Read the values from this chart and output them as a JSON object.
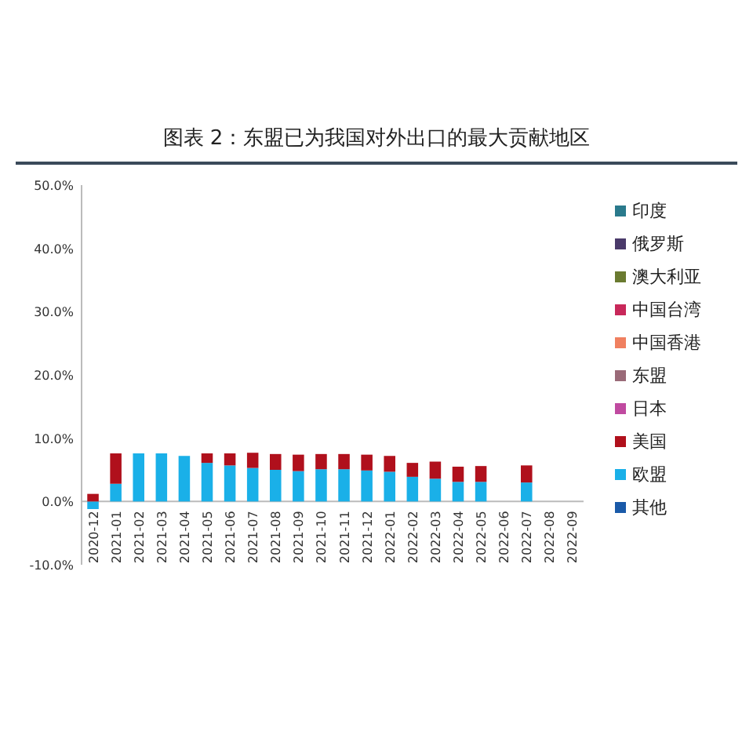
{
  "chart_data": {
    "type": "bar",
    "title": "图表 2：东盟已为我国对外出口的最大贡献地区",
    "stacked": true,
    "legend": "right",
    "grid": false,
    "categories": [
      "2020-12",
      "2021-01",
      "2021-02",
      "2021-03",
      "2021-04",
      "2021-05",
      "2021-06",
      "2021-07",
      "2021-08",
      "2021-09",
      "2021-10",
      "2021-11",
      "2021-12",
      "2022-01",
      "2022-02",
      "2022-03",
      "2022-04",
      "2022-05",
      "2022-06",
      "2022-07",
      "2022-08",
      "2022-09"
    ],
    "ylim": [
      -10,
      50
    ],
    "yticks": [
      {
        "value": -10,
        "label": "-10.0%"
      },
      {
        "value": 0,
        "label": "0.0%"
      },
      {
        "value": 10,
        "label": "10.0%"
      },
      {
        "value": 20,
        "label": "20.0%"
      },
      {
        "value": 30,
        "label": "30.0%"
      },
      {
        "value": 40,
        "label": "40.0%"
      },
      {
        "value": 50,
        "label": "50.0%"
      }
    ],
    "series": [
      {
        "name": "其他",
        "color": "#1a5aa8",
        "values": [
          null,
          null,
          null,
          null,
          null,
          null,
          null,
          null,
          null,
          null,
          null,
          null,
          null,
          null,
          null,
          null,
          null,
          null,
          null,
          null,
          null,
          null
        ]
      },
      {
        "name": "欧盟",
        "color": "#1ab0e8",
        "values": [
          -1.2,
          2.8,
          7.6,
          7.6,
          7.2,
          6.1,
          5.7,
          5.3,
          5.0,
          4.8,
          5.1,
          5.1,
          4.9,
          4.7,
          3.9,
          3.6,
          3.1,
          3.1,
          null,
          3.0,
          null,
          null
        ]
      },
      {
        "name": "美国",
        "color": "#b0101c",
        "values": [
          1.2,
          4.8,
          null,
          null,
          null,
          1.5,
          1.9,
          2.4,
          2.5,
          2.6,
          2.4,
          2.4,
          2.5,
          2.5,
          2.2,
          2.7,
          2.4,
          2.5,
          null,
          2.7,
          null,
          null
        ]
      },
      {
        "name": "日本",
        "color": "#c04aa0",
        "values": [
          null,
          null,
          null,
          null,
          null,
          null,
          null,
          null,
          null,
          null,
          null,
          null,
          null,
          null,
          null,
          null,
          null,
          null,
          null,
          null,
          null,
          null
        ]
      },
      {
        "name": "东盟",
        "color": "#9a6a78",
        "values": [
          null,
          null,
          null,
          null,
          null,
          null,
          null,
          null,
          null,
          null,
          null,
          null,
          null,
          null,
          null,
          null,
          null,
          null,
          null,
          null,
          null,
          null
        ]
      },
      {
        "name": "中国香港",
        "color": "#f08060",
        "values": [
          null,
          null,
          null,
          null,
          null,
          null,
          null,
          null,
          null,
          null,
          null,
          null,
          null,
          null,
          null,
          null,
          null,
          null,
          null,
          null,
          null,
          null
        ]
      },
      {
        "name": "中国台湾",
        "color": "#c8285a",
        "values": [
          null,
          null,
          null,
          null,
          null,
          null,
          null,
          null,
          null,
          null,
          null,
          null,
          null,
          null,
          null,
          null,
          null,
          null,
          null,
          null,
          null,
          null
        ]
      },
      {
        "name": "澳大利亚",
        "color": "#6a7a30",
        "values": [
          null,
          null,
          null,
          null,
          null,
          null,
          null,
          null,
          null,
          null,
          null,
          null,
          null,
          null,
          null,
          null,
          null,
          null,
          null,
          null,
          null,
          null
        ]
      },
      {
        "name": "俄罗斯",
        "color": "#4a3a6a",
        "values": [
          null,
          null,
          null,
          null,
          null,
          null,
          null,
          null,
          null,
          null,
          null,
          null,
          null,
          null,
          null,
          null,
          null,
          null,
          null,
          null,
          null,
          null
        ]
      },
      {
        "name": "印度",
        "color": "#2a7a8c",
        "values": [
          null,
          null,
          null,
          null,
          null,
          null,
          null,
          null,
          null,
          null,
          null,
          null,
          null,
          null,
          null,
          null,
          null,
          null,
          null,
          null,
          null,
          null
        ]
      }
    ]
  }
}
